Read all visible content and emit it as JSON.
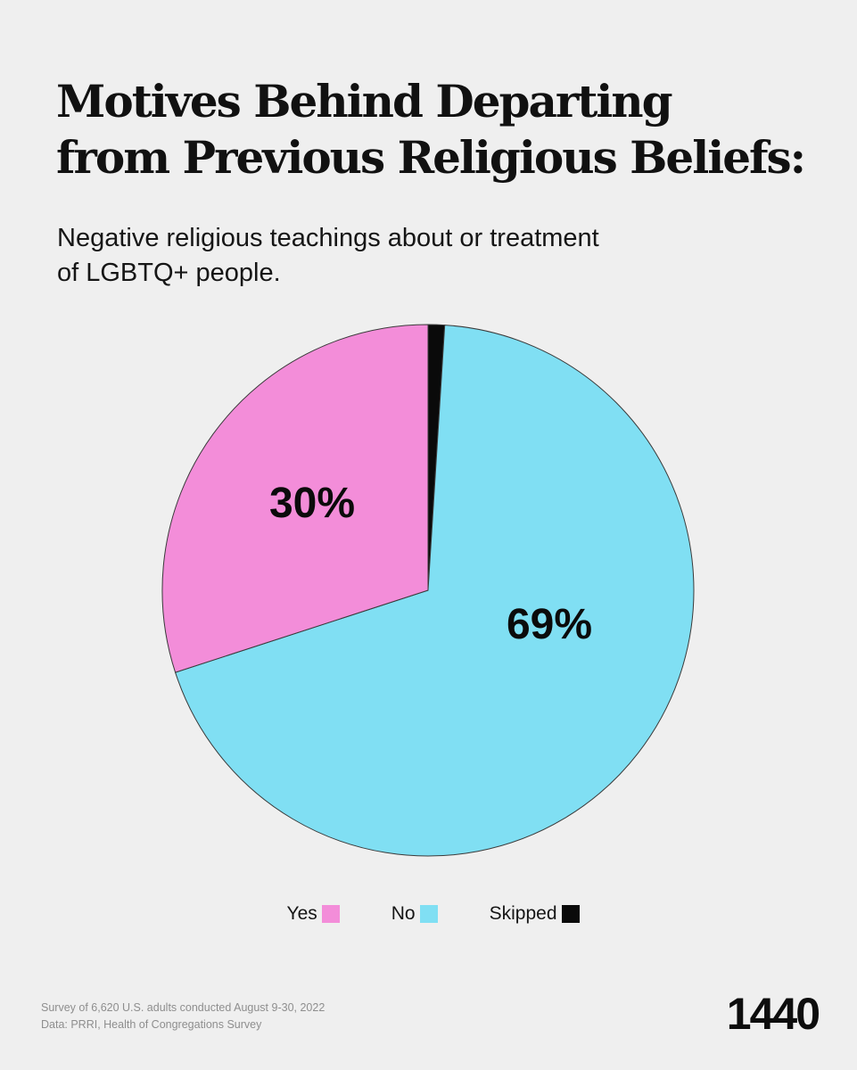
{
  "chart_data": {
    "type": "pie",
    "title": [
      "Motives Behind Departing",
      "from Previous Religious Beliefs:"
    ],
    "subtitle": [
      "Negative religious teachings about or treatment",
      "of LGBTQ+ people."
    ],
    "slices": [
      {
        "label": "Yes",
        "value": 30,
        "value_label": "30%",
        "color": "#f38dd9"
      },
      {
        "label": "No",
        "value": 69,
        "value_label": "69%",
        "color": "#80dff3"
      },
      {
        "label": "Skipped",
        "value": 1,
        "value_label": "",
        "color": "#0a0a0a"
      }
    ],
    "legend": {
      "position": "bottom-center"
    },
    "start_direction": "12 o'clock",
    "order": [
      "Skipped",
      "No",
      "Yes"
    ],
    "direction": "clockwise"
  },
  "footnote": {
    "line1": "Survey of 6,620 U.S. adults conducted August 9-30, 2022",
    "line2": "Data: PRRI, Health of Congregations Survey"
  },
  "brand": {
    "logo_text": "1440"
  }
}
